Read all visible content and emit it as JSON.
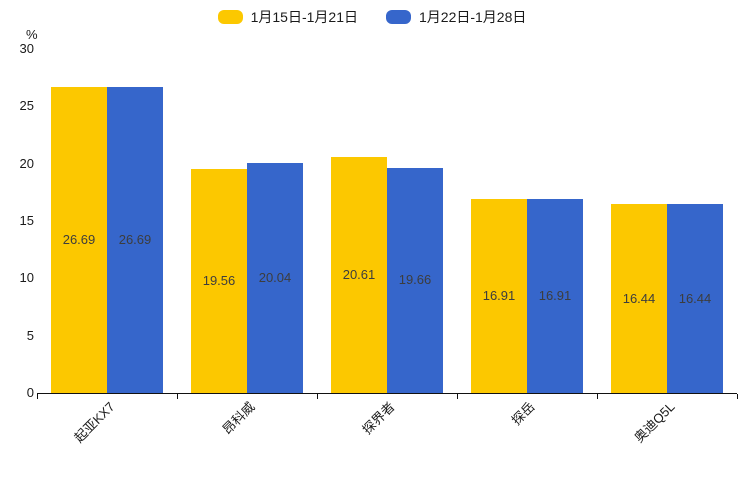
{
  "chart_data": {
    "type": "bar",
    "title": "",
    "unit_label": "%",
    "categories": [
      "起亚KX7",
      "昂科威",
      "探界者",
      "探岳",
      "奥迪Q5L"
    ],
    "series": [
      {
        "name": "1月15日-1月21日",
        "color": "#FCC800",
        "values": [
          26.69,
          19.56,
          20.61,
          16.91,
          16.44
        ]
      },
      {
        "name": "1月22日-1月28日",
        "color": "#3666CB",
        "values": [
          26.69,
          20.04,
          19.66,
          16.91,
          16.44
        ]
      }
    ],
    "value_labels": [
      [
        "26.69",
        "19.56",
        "20.61",
        "16.91",
        "16.44"
      ],
      [
        "26.69",
        "20.04",
        "19.66",
        "16.91",
        "16.44"
      ]
    ],
    "ylim": [
      0,
      30
    ],
    "yticks": [
      "0",
      "5",
      "10",
      "15",
      "20",
      "25",
      "30"
    ],
    "grid": false,
    "legend_position": "top",
    "xlabel": "",
    "ylabel": "%"
  }
}
